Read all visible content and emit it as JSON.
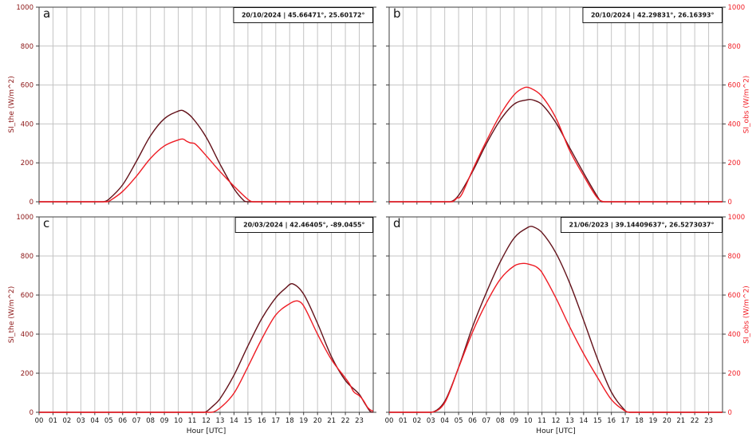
{
  "figure": {
    "background": "#ffffff"
  },
  "styles": {
    "grid_color": "#c4c4c4",
    "spine_color": "#3c3c3c",
    "tick_color": "#3c3c3c",
    "text_color": "#141414",
    "annotation_bg": "#ffffff",
    "annotation_border": "#000000"
  },
  "axes": {
    "x": {
      "title": "Hour [UTC]",
      "tick_labels": [
        "00",
        "01",
        "02",
        "03",
        "04",
        "05",
        "06",
        "07",
        "08",
        "09",
        "10",
        "11",
        "12",
        "13",
        "14",
        "15",
        "16",
        "17",
        "18",
        "19",
        "20",
        "21",
        "22",
        "23"
      ],
      "min": 0,
      "max": 24,
      "grid": true
    },
    "y_left": {
      "title": "SI_the (W/m^2)",
      "tick_labels": [
        "0",
        "200",
        "400",
        "600",
        "800",
        "1000"
      ],
      "tick_values": [
        0,
        200,
        400,
        600,
        800,
        1000
      ],
      "min": 0,
      "max": 1000,
      "color": "#8b1414",
      "grid": true
    },
    "y_right": {
      "title": "SI_obs (W/m^2)",
      "tick_labels": [
        "0",
        "200",
        "400",
        "600",
        "800",
        "1000"
      ],
      "tick_values": [
        0,
        200,
        400,
        600,
        800,
        1000
      ],
      "min": 0,
      "max": 1000,
      "color": "#f21d25"
    }
  },
  "chart_data": [
    {
      "id": "a",
      "letter": "a",
      "grid_pos": [
        0,
        0
      ],
      "type": "line",
      "annotation": "20/10/2024 | 45.66471°, 25.60172°",
      "x_unit": "hour UTC",
      "y_unit": "W/m^2",
      "series": [
        {
          "name": "SI_the",
          "color": "#63121a",
          "points": [
            [
              0,
              0
            ],
            [
              4.6,
              0
            ],
            [
              5,
              12
            ],
            [
              6,
              87
            ],
            [
              7,
              209
            ],
            [
              8,
              339
            ],
            [
              9,
              427
            ],
            [
              10,
              466
            ],
            [
              10.35,
              468
            ],
            [
              11,
              432
            ],
            [
              12,
              332
            ],
            [
              13,
              193
            ],
            [
              14,
              67
            ],
            [
              14.75,
              3
            ],
            [
              15,
              0
            ],
            [
              24,
              0
            ]
          ]
        },
        {
          "name": "SI_obs",
          "color": "#ee1c24",
          "points": [
            [
              0,
              0
            ],
            [
              4.85,
              0
            ],
            [
              5.1,
              6
            ],
            [
              6,
              53
            ],
            [
              7,
              132
            ],
            [
              8,
              223
            ],
            [
              9,
              287
            ],
            [
              10,
              318
            ],
            [
              10.35,
              322
            ],
            [
              10.6,
              311
            ],
            [
              10.85,
              303
            ],
            [
              11.2,
              298
            ],
            [
              12,
              237
            ],
            [
              13,
              155
            ],
            [
              14,
              80
            ],
            [
              15,
              12
            ],
            [
              15.35,
              0
            ],
            [
              24,
              0
            ]
          ]
        }
      ]
    },
    {
      "id": "b",
      "letter": "b",
      "grid_pos": [
        0,
        1
      ],
      "type": "line",
      "annotation": "20/10/2024 | 42.29831°, 26.16393°",
      "x_unit": "hour UTC",
      "y_unit": "W/m^2",
      "series": [
        {
          "name": "SI_the",
          "color": "#63121a",
          "points": [
            [
              0,
              0
            ],
            [
              4.4,
              0
            ],
            [
              5,
              33
            ],
            [
              6,
              155
            ],
            [
              7,
              298
            ],
            [
              8,
              420
            ],
            [
              9,
              502
            ],
            [
              10,
              525
            ],
            [
              10.35,
              523
            ],
            [
              11,
              500
            ],
            [
              12,
              407
            ],
            [
              13,
              277
            ],
            [
              14,
              148
            ],
            [
              15,
              26
            ],
            [
              15.3,
              0
            ],
            [
              24,
              0
            ]
          ]
        },
        {
          "name": "SI_obs",
          "color": "#ee1c24",
          "points": [
            [
              0,
              0
            ],
            [
              4.55,
              0
            ],
            [
              4.75,
              10
            ],
            [
              4.9,
              20
            ],
            [
              5.05,
              21
            ],
            [
              5.3,
              48
            ],
            [
              6,
              162
            ],
            [
              7,
              312
            ],
            [
              8,
              447
            ],
            [
              9,
              550
            ],
            [
              9.75,
              587
            ],
            [
              10.2,
              583
            ],
            [
              11,
              542
            ],
            [
              12,
              431
            ],
            [
              13,
              263
            ],
            [
              14,
              134
            ],
            [
              15,
              19
            ],
            [
              15.5,
              0
            ],
            [
              24,
              0
            ]
          ]
        }
      ]
    },
    {
      "id": "c",
      "letter": "c",
      "grid_pos": [
        1,
        0
      ],
      "type": "line",
      "annotation": "20/03/2024 | 42.46405°, -89.0455°",
      "x_unit": "hour UTC",
      "y_unit": "W/m^2",
      "series": [
        {
          "name": "SI_the",
          "color": "#63121a",
          "points": [
            [
              0,
              0
            ],
            [
              11.85,
              0
            ],
            [
              12.5,
              33
            ],
            [
              13,
              70
            ],
            [
              14,
              190
            ],
            [
              15,
              340
            ],
            [
              16,
              480
            ],
            [
              17,
              586
            ],
            [
              17.7,
              635
            ],
            [
              18.2,
              658
            ],
            [
              19,
              605
            ],
            [
              20,
              455
            ],
            [
              21,
              285
            ],
            [
              22,
              163
            ],
            [
              23,
              92
            ],
            [
              23.4,
              45
            ],
            [
              23.8,
              3
            ],
            [
              24,
              0
            ]
          ]
        },
        {
          "name": "SI_obs",
          "color": "#ee1c24",
          "points": [
            [
              0,
              0
            ],
            [
              12.35,
              0
            ],
            [
              13,
              22
            ],
            [
              14,
              98
            ],
            [
              15,
              233
            ],
            [
              16,
              376
            ],
            [
              17,
              498
            ],
            [
              18,
              556
            ],
            [
              18.55,
              570
            ],
            [
              19,
              545
            ],
            [
              20,
              400
            ],
            [
              21,
              270
            ],
            [
              22,
              175
            ],
            [
              22.3,
              145
            ],
            [
              22.6,
              105
            ],
            [
              23,
              85
            ],
            [
              23.3,
              60
            ],
            [
              23.6,
              25
            ],
            [
              23.85,
              10
            ],
            [
              24,
              8
            ]
          ]
        }
      ]
    },
    {
      "id": "d",
      "letter": "d",
      "grid_pos": [
        1,
        1
      ],
      "type": "line",
      "annotation": "21/06/2023 | 39.14409637°, 26.5273037°",
      "x_unit": "hour UTC",
      "y_unit": "W/m^2",
      "series": [
        {
          "name": "SI_the",
          "color": "#63121a",
          "points": [
            [
              0,
              0
            ],
            [
              3.05,
              0
            ],
            [
              4,
              56
            ],
            [
              5,
              230
            ],
            [
              6,
              437
            ],
            [
              7,
              613
            ],
            [
              8,
              770
            ],
            [
              9,
              892
            ],
            [
              10,
              947
            ],
            [
              10.35,
              950
            ],
            [
              11,
              920
            ],
            [
              12,
              816
            ],
            [
              13,
              661
            ],
            [
              14,
              471
            ],
            [
              15,
              273
            ],
            [
              16,
              103
            ],
            [
              17,
              8
            ],
            [
              17.3,
              0
            ],
            [
              24,
              0
            ]
          ]
        },
        {
          "name": "SI_obs",
          "color": "#ee1c24",
          "points": [
            [
              0,
              0
            ],
            [
              3.05,
              0
            ],
            [
              4,
              49
            ],
            [
              5,
              228
            ],
            [
              6,
              410
            ],
            [
              7,
              560
            ],
            [
              8,
              681
            ],
            [
              9,
              749
            ],
            [
              9.7,
              762
            ],
            [
              10.2,
              755
            ],
            [
              10.6,
              744
            ],
            [
              11,
              716
            ],
            [
              12,
              586
            ],
            [
              13,
              437
            ],
            [
              14,
              300
            ],
            [
              15,
              178
            ],
            [
              16,
              65
            ],
            [
              17,
              6
            ],
            [
              17.35,
              0
            ],
            [
              24,
              0
            ]
          ]
        }
      ]
    }
  ]
}
